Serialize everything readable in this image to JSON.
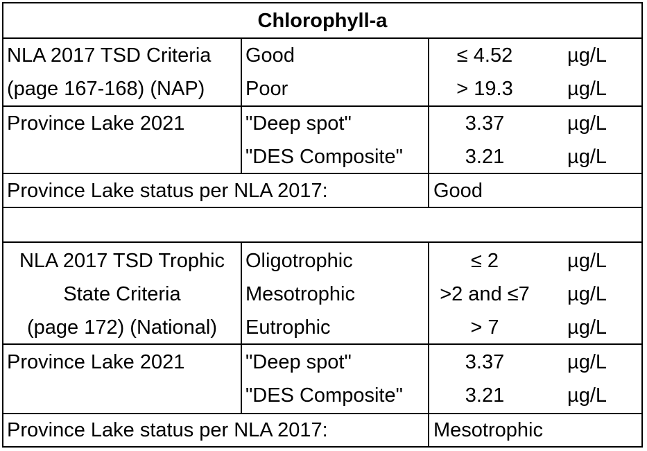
{
  "title": "Chlorophyll-a",
  "section1": {
    "criteria_label": [
      "NLA 2017 TSD Criteria",
      "(page 167-168) (NAP)"
    ],
    "criteria_rows": [
      {
        "category": "Good",
        "value": "≤ 4.52",
        "unit": "µg/L"
      },
      {
        "category": "Poor",
        "value": "> 19.3",
        "unit": "µg/L"
      }
    ],
    "lake_label": "Province Lake 2021",
    "lake_rows": [
      {
        "site": "\"Deep spot\"",
        "value": "3.37",
        "unit": "µg/L"
      },
      {
        "site": "\"DES Composite\"",
        "value": "3.21",
        "unit": "µg/L"
      }
    ],
    "status_label": "Province Lake status per NLA 2017:",
    "status_value": "Good"
  },
  "section2": {
    "criteria_label": [
      "NLA 2017 TSD Trophic",
      "State Criteria",
      "(page 172) (National)"
    ],
    "criteria_rows": [
      {
        "category": "Oligotrophic",
        "value": "≤ 2",
        "unit": "µg/L"
      },
      {
        "category": "Mesotrophic",
        "value": ">2 and ≤7",
        "unit": "µg/L"
      },
      {
        "category": "Eutrophic",
        "value": "> 7",
        "unit": "µg/L"
      }
    ],
    "lake_label": "Province Lake 2021",
    "lake_rows": [
      {
        "site": "\"Deep spot\"",
        "value": "3.37",
        "unit": "µg/L"
      },
      {
        "site": "\"DES Composite\"",
        "value": "3.21",
        "unit": "µg/L"
      }
    ],
    "status_label": "Province Lake status per NLA 2017:",
    "status_value": "Mesotrophic"
  }
}
